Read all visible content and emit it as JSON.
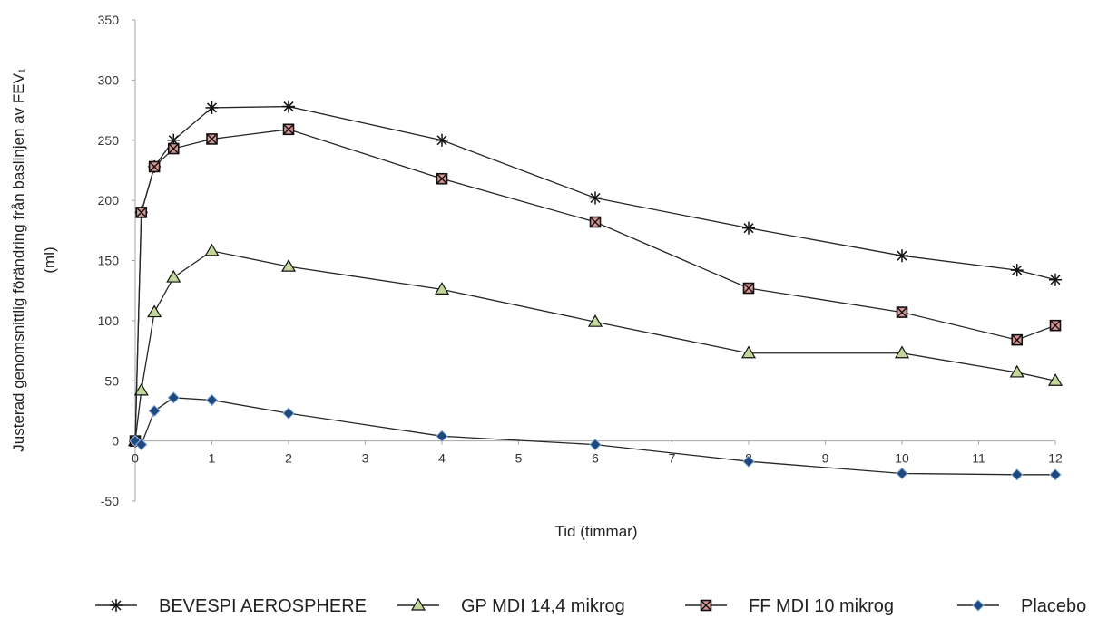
{
  "chart_data": {
    "type": "line",
    "title": "",
    "xlabel": "Tid (timmar)",
    "ylabel_line1": "Justerad  genomsnittlig förändring från baslinjen av FEV₁",
    "ylabel_line2": "(ml)",
    "xlim": [
      0,
      12
    ],
    "ylim": [
      -50,
      350
    ],
    "xticks": [
      0,
      1,
      2,
      3,
      4,
      5,
      6,
      7,
      8,
      9,
      10,
      11,
      12
    ],
    "yticks": [
      -50,
      0,
      50,
      100,
      150,
      200,
      250,
      300,
      350
    ],
    "grid": false,
    "legend_position": "bottom",
    "series": [
      {
        "name": "BEVESPI AEROSPHERE",
        "marker": "asterisk",
        "marker_fill": "#000000",
        "x": [
          0,
          0.08,
          0.25,
          0.5,
          1,
          2,
          4,
          6,
          8,
          10,
          11.5,
          12
        ],
        "y": [
          0,
          190,
          228,
          250,
          277,
          278,
          250,
          202,
          177,
          154,
          142,
          134
        ]
      },
      {
        "name": "GP MDI 14,4 mikrog",
        "marker": "triangle",
        "marker_fill": "#c4d79b",
        "x": [
          0,
          0.08,
          0.25,
          0.5,
          1,
          2,
          4,
          6,
          8,
          10,
          11.5,
          12
        ],
        "y": [
          0,
          42,
          107,
          136,
          158,
          145,
          126,
          99,
          73,
          73,
          57,
          50
        ]
      },
      {
        "name": "FF MDI 10 mikrog",
        "marker": "square-x",
        "marker_fill": "#d99694",
        "x": [
          0,
          0.08,
          0.25,
          0.5,
          1,
          2,
          4,
          6,
          8,
          10,
          11.5,
          12
        ],
        "y": [
          0,
          190,
          228,
          243,
          251,
          259,
          218,
          182,
          127,
          107,
          84,
          96
        ]
      },
      {
        "name": "Placebo",
        "marker": "diamond",
        "marker_fill": "#1f497d",
        "x": [
          0,
          0.08,
          0.25,
          0.5,
          1,
          2,
          4,
          6,
          8,
          10,
          11.5,
          12
        ],
        "y": [
          0,
          -3,
          25,
          36,
          34,
          23,
          4,
          -3,
          -17,
          -27,
          -28,
          -28
        ]
      }
    ]
  }
}
